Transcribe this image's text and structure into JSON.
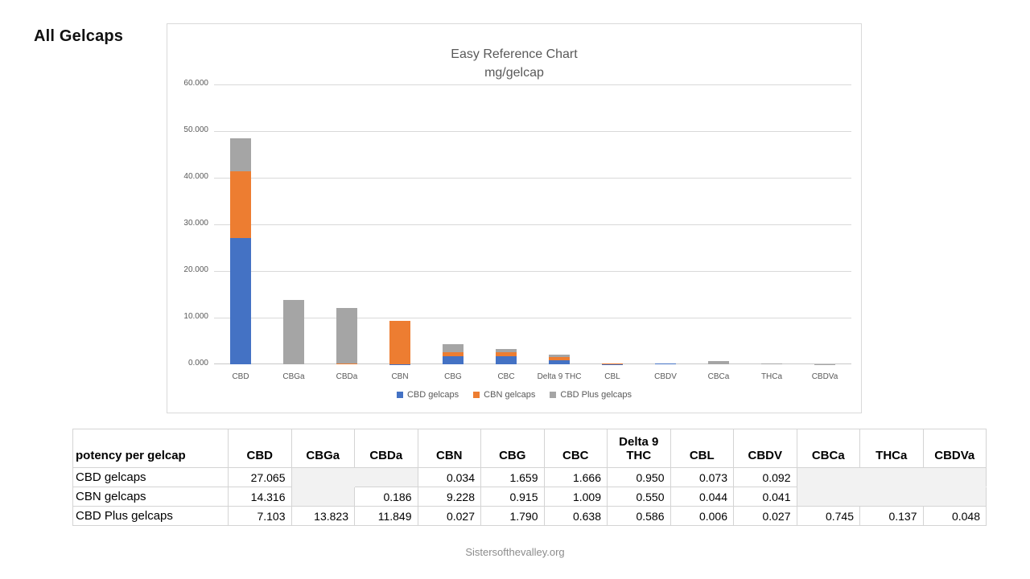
{
  "page": {
    "title": "All Gelcaps",
    "footer": "Sistersofthevalley.org"
  },
  "chart": {
    "title_line1": "Easy Reference Chart",
    "title_line2": "mg/gelcap",
    "y_tick_labels": [
      "60.000",
      "50.000",
      "40.000",
      "30.000",
      "20.000",
      "10.000",
      "0.000"
    ],
    "gridline_color": "#d9d9d9",
    "axis_line_color": "#c9c9c9",
    "text_color": "#595959"
  },
  "chart_data": {
    "type": "bar",
    "stacked": true,
    "title": "Easy Reference Chart",
    "subtitle": "mg/gelcap",
    "categories": [
      "CBD",
      "CBGa",
      "CBDa",
      "CBN",
      "CBG",
      "CBC",
      "Delta 9 THC",
      "CBL",
      "CBDV",
      "CBCa",
      "THCa",
      "CBDVa"
    ],
    "series": [
      {
        "name": "CBD gelcaps",
        "color": "#4472c4",
        "values": [
          27.065,
          0,
          0,
          0.034,
          1.659,
          1.666,
          0.95,
          0.073,
          0.092,
          0,
          0,
          0
        ]
      },
      {
        "name": "CBN gelcaps",
        "color": "#ed7d31",
        "values": [
          14.316,
          0,
          0.186,
          9.228,
          0.915,
          1.009,
          0.55,
          0.044,
          0.041,
          0,
          0,
          0
        ]
      },
      {
        "name": "CBD Plus gelcaps",
        "color": "#a5a5a5",
        "values": [
          7.103,
          13.823,
          11.849,
          0.027,
          1.79,
          0.638,
          0.586,
          0.006,
          0.027,
          0.745,
          0.137,
          0.048
        ]
      }
    ],
    "ylim": [
      0,
      60
    ],
    "y_tick_step": 10,
    "grid": true,
    "legend_position": "bottom"
  },
  "table": {
    "corner_label": "potency per gelcap",
    "columns": [
      "CBD",
      "CBGa",
      "CBDa",
      "CBN",
      "CBG",
      "CBC",
      "Delta 9 THC",
      "CBL",
      "CBDV",
      "CBCa",
      "THCa",
      "CBDVa"
    ],
    "rows": [
      {
        "label": "CBD gelcaps",
        "values": [
          "27.065",
          "",
          "",
          "0.034",
          "1.659",
          "1.666",
          "0.950",
          "0.073",
          "0.092",
          "",
          "",
          ""
        ],
        "shaded": [
          1,
          2,
          9,
          10,
          11
        ]
      },
      {
        "label": "CBN gelcaps",
        "values": [
          "14.316",
          "",
          "0.186",
          "9.228",
          "0.915",
          "1.009",
          "0.550",
          "0.044",
          "0.041",
          "",
          "",
          ""
        ],
        "shaded": [
          1,
          9,
          10,
          11
        ]
      },
      {
        "label": "CBD Plus gelcaps",
        "values": [
          "7.103",
          "13.823",
          "11.849",
          "0.027",
          "1.790",
          "0.638",
          "0.586",
          "0.006",
          "0.027",
          "0.745",
          "0.137",
          "0.048"
        ],
        "shaded": []
      }
    ],
    "shade_color": "#f2f2f2",
    "border_color": "#d4d4d4"
  }
}
